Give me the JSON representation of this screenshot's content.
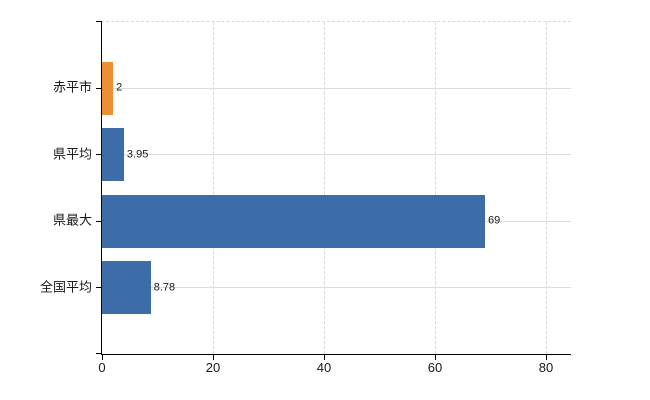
{
  "chart_data": {
    "type": "bar",
    "orientation": "horizontal",
    "title": "",
    "xlabel": "",
    "ylabel": "",
    "legend": "none",
    "grid": {
      "vertical": "dashed",
      "horizontal": "solid"
    },
    "categories": [
      "赤平市",
      "県平均",
      "県最大",
      "全国平均"
    ],
    "values": [
      2,
      3.95,
      69,
      8.78
    ],
    "value_labels": [
      "2",
      "3.95",
      "69",
      "8.78"
    ],
    "bar_colors": [
      "#EC9033",
      "#3D6DA8",
      "#3D6DA8",
      "#3D6DA8"
    ],
    "x_ticks": [
      0,
      20,
      40,
      60,
      80
    ],
    "x_tick_labels": [
      "0",
      "20",
      "40",
      "60",
      "80"
    ],
    "xlim": [
      0,
      84.5
    ],
    "colors": {
      "bar_highlight": "#EC9033",
      "bar_default": "#3D6DA8",
      "axis": "#000000",
      "gridline": "#d9d9d9",
      "text": "#1a1a1a",
      "background": "#ffffff"
    }
  }
}
